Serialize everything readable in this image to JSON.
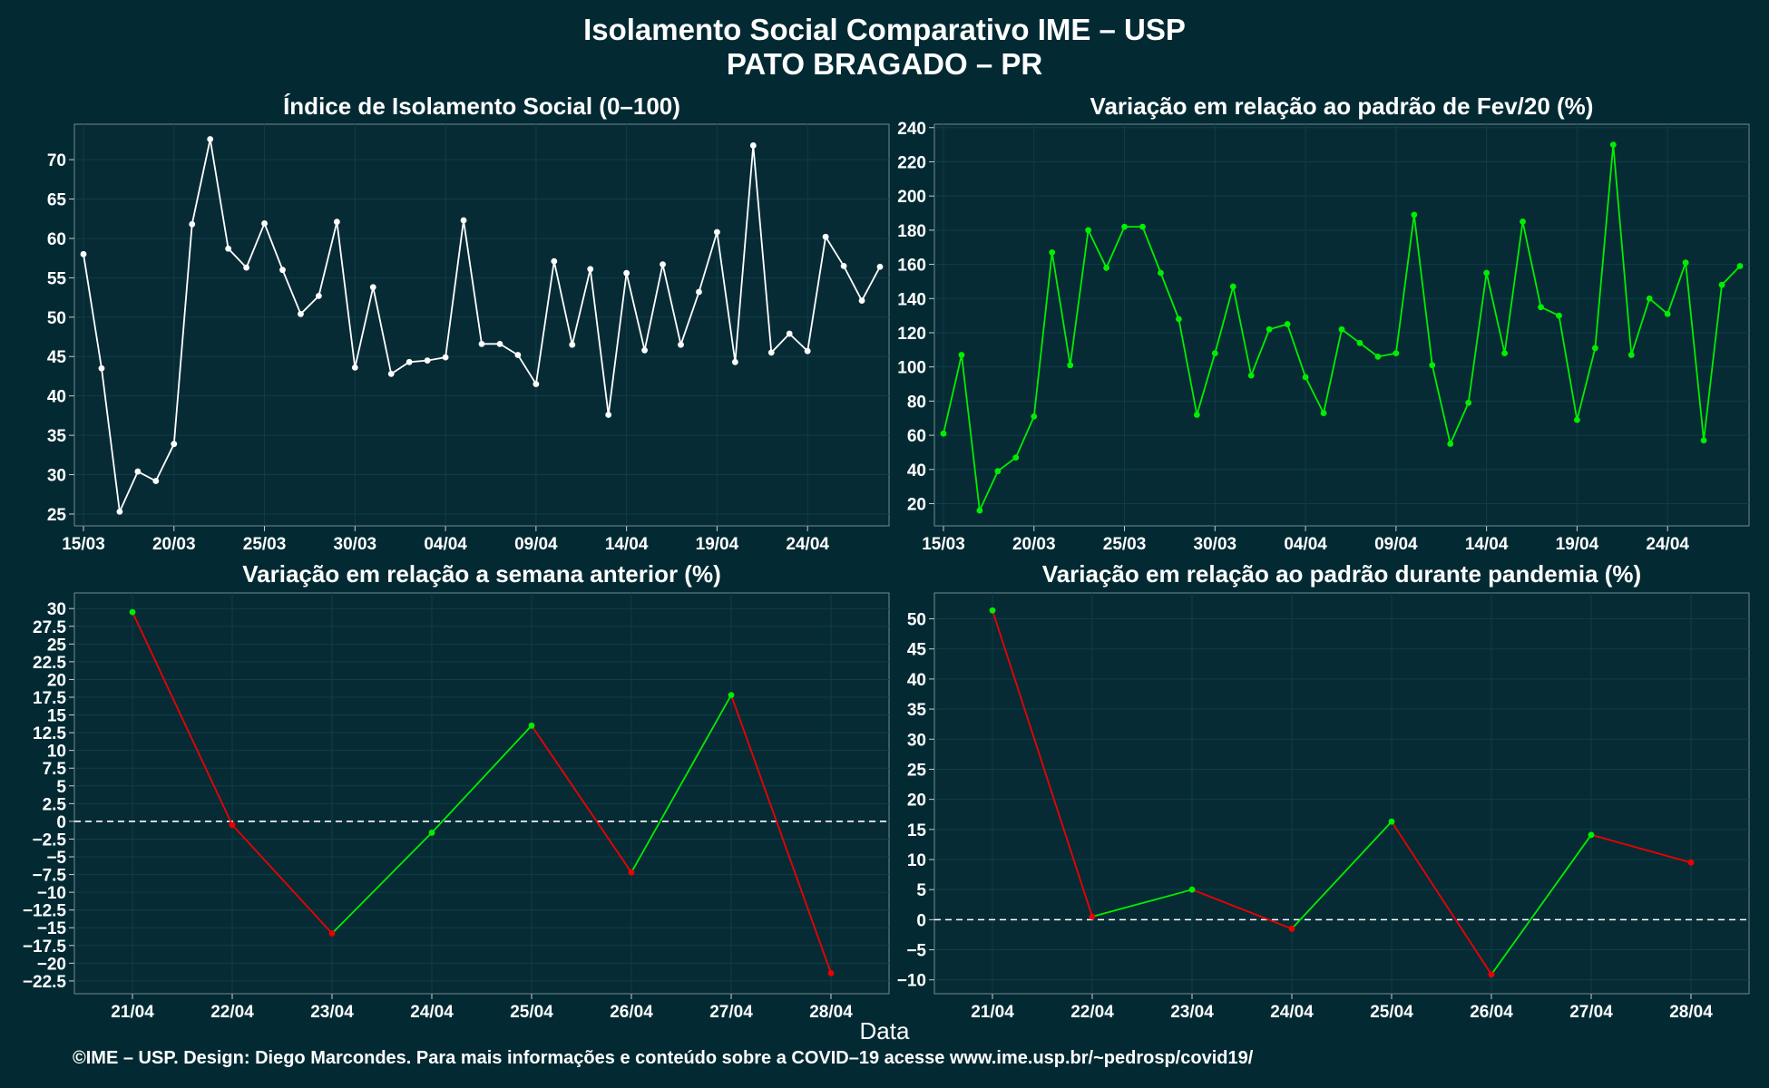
{
  "header": {
    "title": "Isolamento Social Comparativo IME – USP",
    "subtitle": "PATO BRAGADO – PR"
  },
  "x_axis_title": "Data",
  "footer": "©IME – USP. Design: Diego Marcondes. Para mais informações e conteúdo sobre a COVID–19 acesse www.ime.usp.br/~pedrosp/covid19/",
  "colors": {
    "background": "#032a33",
    "panel": "#072b35",
    "index_line": "#ffffff",
    "feb_line": "#00ee00",
    "up": "#00ee00",
    "down": "#ee0000"
  },
  "chart_data": [
    {
      "id": "isolation_index",
      "type": "line",
      "title": "Índice de Isolamento Social (0–100)",
      "x_start": "2020-03-15",
      "x_ticks": [
        "15/03",
        "20/03",
        "25/03",
        "30/03",
        "04/04",
        "09/04",
        "14/04",
        "19/04",
        "24/04"
      ],
      "y_ticks": [
        25,
        30,
        35,
        40,
        45,
        50,
        55,
        60,
        65,
        70
      ],
      "ylim": [
        23.5,
        74.5
      ],
      "values": [
        58.0,
        43.5,
        25.3,
        30.4,
        29.2,
        33.9,
        61.8,
        72.6,
        58.7,
        56.3,
        61.9,
        56.0,
        50.4,
        52.7,
        62.1,
        43.6,
        53.8,
        42.8,
        44.3,
        44.5,
        44.9,
        62.3,
        46.6,
        46.6,
        45.2,
        41.5,
        57.1,
        46.5,
        56.1,
        37.6,
        55.6,
        45.8,
        56.7,
        46.5,
        53.2,
        60.8,
        44.3,
        71.8,
        45.5,
        47.9,
        45.7,
        60.2,
        56.5,
        52.1,
        56.4
      ],
      "series": [
        {
          "values_ref": "values",
          "color": "#ffffff"
        }
      ],
      "grid": true
    },
    {
      "id": "feb_variation",
      "type": "line",
      "title": "Variação em relação ao padrão de Fev/20 (%)",
      "x_start": "2020-03-15",
      "x_ticks": [
        "15/03",
        "20/03",
        "25/03",
        "30/03",
        "04/04",
        "09/04",
        "14/04",
        "19/04",
        "24/04"
      ],
      "y_ticks": [
        20,
        40,
        60,
        80,
        100,
        120,
        140,
        160,
        180,
        200,
        220,
        240
      ],
      "ylim": [
        7,
        242
      ],
      "values": [
        61,
        107,
        16,
        39,
        47,
        71,
        167,
        101,
        180,
        158,
        182,
        182,
        155,
        128,
        72,
        108,
        147,
        95,
        122,
        125,
        94,
        73,
        122,
        114,
        106,
        108,
        189,
        101,
        55,
        79,
        155,
        108,
        185,
        135,
        130,
        69,
        111,
        230,
        107,
        140,
        131,
        161,
        57,
        148,
        159
      ],
      "grid": true
    },
    {
      "id": "previous_week_variation",
      "type": "line",
      "title": "Variação em relação a semana anterior (%)",
      "categories": [
        "21/04",
        "22/04",
        "23/04",
        "24/04",
        "25/04",
        "26/04",
        "27/04",
        "28/04"
      ],
      "values": [
        29.5,
        -0.5,
        -15.8,
        -1.6,
        13.5,
        -7.2,
        17.8,
        -21.4
      ],
      "y_ticks": [
        30,
        27.5,
        25,
        22.5,
        20,
        17.5,
        15,
        12.5,
        10,
        7.5,
        5,
        2.5,
        0,
        -2.5,
        -5,
        -7.5,
        -10,
        -12.5,
        -15,
        -17.5,
        -20,
        -22.5
      ],
      "ylim": [
        -24.3,
        32.2
      ],
      "reference_line": 0,
      "segment_colors": "green when rising, red when falling",
      "grid": true
    },
    {
      "id": "pandemic_variation",
      "type": "line",
      "title": "Variação em relação ao padrão durante pandemia (%)",
      "categories": [
        "21/04",
        "22/04",
        "23/04",
        "24/04",
        "25/04",
        "26/04",
        "27/04",
        "28/04"
      ],
      "values": [
        51.4,
        0.5,
        5.0,
        -1.5,
        16.3,
        -9.1,
        14.1,
        9.5
      ],
      "y_ticks": [
        -10,
        -5,
        0,
        5,
        10,
        15,
        20,
        25,
        30,
        35,
        40,
        45,
        50
      ],
      "ylim": [
        -12.3,
        54.3
      ],
      "reference_line": 0,
      "segment_colors": "green when rising, red when falling",
      "grid": true
    }
  ]
}
